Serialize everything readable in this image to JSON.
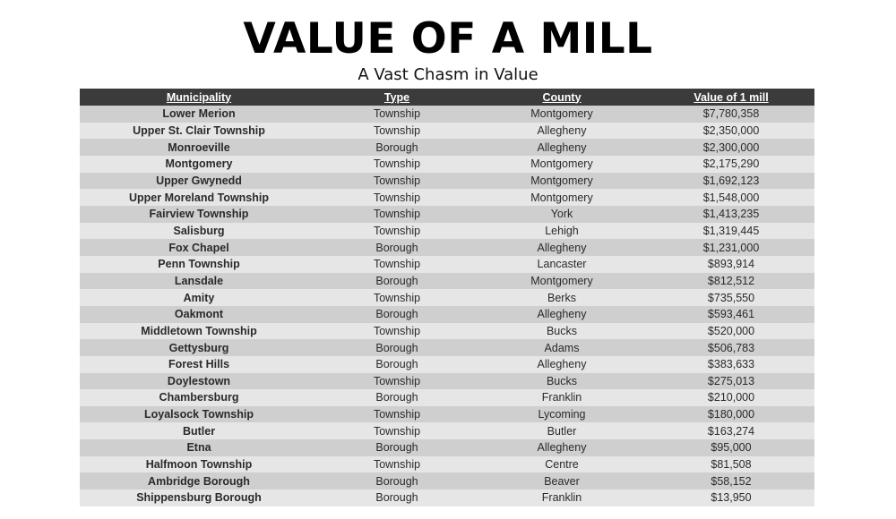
{
  "title": "VALUE OF A MILL",
  "subtitle": "A Vast Chasm in Value",
  "table": {
    "headers": [
      "Municipality",
      "Type",
      "County",
      "Value of 1 mill"
    ],
    "rows": [
      [
        "Lower Merion",
        "Township",
        "Montgomery",
        "$7,780,358"
      ],
      [
        "Upper St. Clair Township",
        "Township",
        "Allegheny",
        "$2,350,000"
      ],
      [
        "Monroeville",
        "Borough",
        "Allegheny",
        "$2,300,000"
      ],
      [
        "Montgomery",
        "Township",
        "Montgomery",
        "$2,175,290"
      ],
      [
        "Upper Gwynedd",
        "Township",
        "Montgomery",
        "$1,692,123"
      ],
      [
        "Upper Moreland Township",
        "Township",
        "Montgomery",
        "$1,548,000"
      ],
      [
        "Fairview Township",
        "Township",
        "York",
        "$1,413,235"
      ],
      [
        "Salisburg",
        "Township",
        "Lehigh",
        "$1,319,445"
      ],
      [
        "Fox Chapel",
        "Borough",
        "Allegheny",
        "$1,231,000"
      ],
      [
        "Penn Township",
        "Township",
        "Lancaster",
        "$893,914"
      ],
      [
        "Lansdale",
        "Borough",
        "Montgomery",
        "$812,512"
      ],
      [
        "Amity",
        "Township",
        "Berks",
        "$735,550"
      ],
      [
        "Oakmont",
        "Borough",
        "Allegheny",
        "$593,461"
      ],
      [
        "Middletown Township",
        "Township",
        "Bucks",
        "$520,000"
      ],
      [
        "Gettysburg",
        "Borough",
        "Adams",
        "$506,783"
      ],
      [
        "Forest Hills",
        "Borough",
        "Allegheny",
        "$383,633"
      ],
      [
        "Doylestown",
        "Township",
        "Bucks",
        "$275,013"
      ],
      [
        "Chambersburg",
        "Borough",
        "Franklin",
        "$210,000"
      ],
      [
        "Loyalsock Township",
        "Township",
        "Lycoming",
        "$180,000"
      ],
      [
        "Butler",
        "Township",
        "Butler",
        "$163,274"
      ],
      [
        "Etna",
        "Borough",
        "Allegheny",
        "$95,000"
      ],
      [
        "Halfmoon Township",
        "Township",
        "Centre",
        "$81,508"
      ],
      [
        "Ambridge Borough",
        "Borough",
        "Beaver",
        "$58,152"
      ],
      [
        "Shippensburg Borough",
        "Borough",
        "Franklin",
        "$13,950"
      ]
    ]
  }
}
